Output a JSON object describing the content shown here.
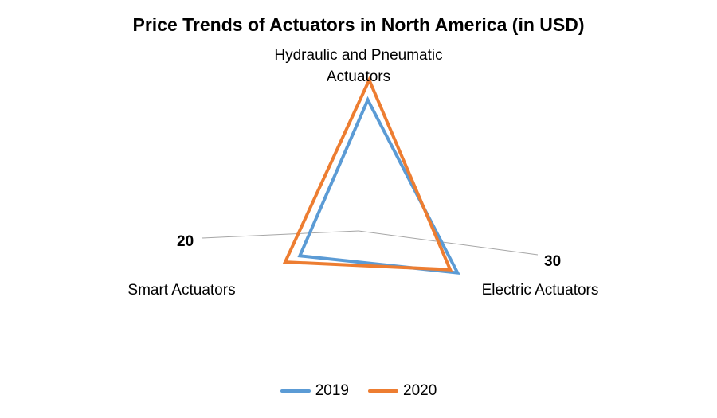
{
  "chart_data": {
    "type": "radar",
    "title": "Price Trends of Actuators in North America (in USD)",
    "axes": [
      "Hydraulic and Pneumatic Actuators",
      "Electric Actuators",
      "Smart Actuators"
    ],
    "axis_label_lines": [
      [
        "Hydraulic and Pneumatic",
        "Actuators"
      ],
      [
        "Electric Actuators"
      ],
      [
        "Smart Actuators"
      ]
    ],
    "range": [
      0,
      40
    ],
    "grid": false,
    "legend_position": "bottom",
    "series": [
      {
        "name": "2019",
        "values": [
          33,
          27,
          16
        ],
        "color": "#5B9BD5"
      },
      {
        "name": "2020",
        "values": [
          38,
          25,
          20
        ],
        "color": "#ED7D31"
      }
    ],
    "annotations": [
      {
        "text": "20",
        "axis": "Smart Actuators"
      },
      {
        "text": "30",
        "axis": "Electric Actuators"
      }
    ]
  }
}
